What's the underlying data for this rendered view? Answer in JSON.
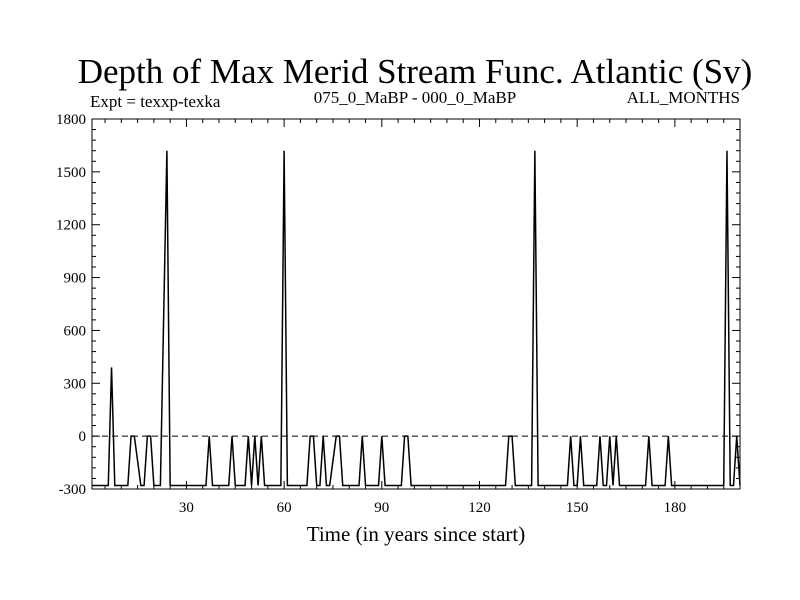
{
  "header": {
    "title": "Depth of Max Merid Stream Func. Atlantic (Sv)",
    "expt": "Expt = texxp-texka",
    "period": "075_0_MaBP - 000_0_MaBP",
    "months": "ALL_MONTHS"
  },
  "chart_data": {
    "type": "line",
    "title": "Depth of Max Merid Stream Func. Atlantic (Sv)",
    "xlabel": "Time (in years since start)",
    "ylabel": "",
    "xlim": [
      1,
      200
    ],
    "ylim": [
      -300,
      1800
    ],
    "xticks": [
      30,
      60,
      90,
      120,
      150,
      180
    ],
    "yticks": [
      -300,
      0,
      300,
      600,
      900,
      1200,
      1500,
      1800
    ],
    "xtick_labels": [
      "30",
      "60",
      "90",
      "120",
      "150",
      "180"
    ],
    "ytick_labels": [
      "-300",
      "0",
      "300",
      "600",
      "900",
      "1200",
      "1500",
      "1800"
    ],
    "reference_line": {
      "y": 0,
      "style": "dashed"
    },
    "grid": false,
    "series": [
      {
        "x": [
          1,
          6,
          7,
          8,
          12,
          13,
          14,
          16,
          17,
          18,
          19,
          20,
          22,
          24,
          25,
          26,
          36,
          37,
          38,
          43,
          44,
          45,
          48,
          49,
          50,
          51,
          52,
          53,
          54,
          55,
          56,
          59,
          60,
          61,
          62,
          67,
          68,
          69,
          70,
          71,
          72,
          73,
          74,
          76,
          77,
          78,
          79,
          83,
          84,
          85,
          89,
          90,
          91,
          96,
          97,
          98,
          99,
          128,
          129,
          130,
          131,
          132,
          133,
          136,
          137,
          138,
          139,
          147,
          148,
          149,
          150,
          151,
          152,
          153,
          156,
          157,
          158,
          159,
          160,
          161,
          162,
          163,
          164,
          171,
          172,
          173,
          177,
          178,
          179,
          194,
          195,
          196,
          197,
          198,
          199,
          200
        ],
        "y": [
          -280,
          -280,
          390,
          -280,
          -280,
          0,
          0,
          -280,
          -280,
          0,
          0,
          -280,
          -280,
          1620,
          -280,
          -280,
          -280,
          0,
          -280,
          -280,
          0,
          -280,
          -280,
          0,
          -280,
          0,
          -280,
          0,
          -280,
          -280,
          -280,
          -280,
          1620,
          -280,
          -280,
          -280,
          0,
          0,
          -280,
          -280,
          0,
          -280,
          -280,
          0,
          0,
          -280,
          -280,
          -280,
          0,
          -280,
          -280,
          0,
          -280,
          -280,
          0,
          0,
          -280,
          -280,
          0,
          0,
          -280,
          -280,
          -280,
          -280,
          1620,
          -280,
          -280,
          -280,
          0,
          -280,
          -280,
          0,
          -280,
          -280,
          -280,
          0,
          -280,
          -280,
          0,
          -280,
          0,
          -280,
          -280,
          -280,
          0,
          -280,
          -280,
          0,
          -280,
          -280,
          -280,
          1620,
          -280,
          -280,
          0,
          -280
        ]
      }
    ]
  }
}
